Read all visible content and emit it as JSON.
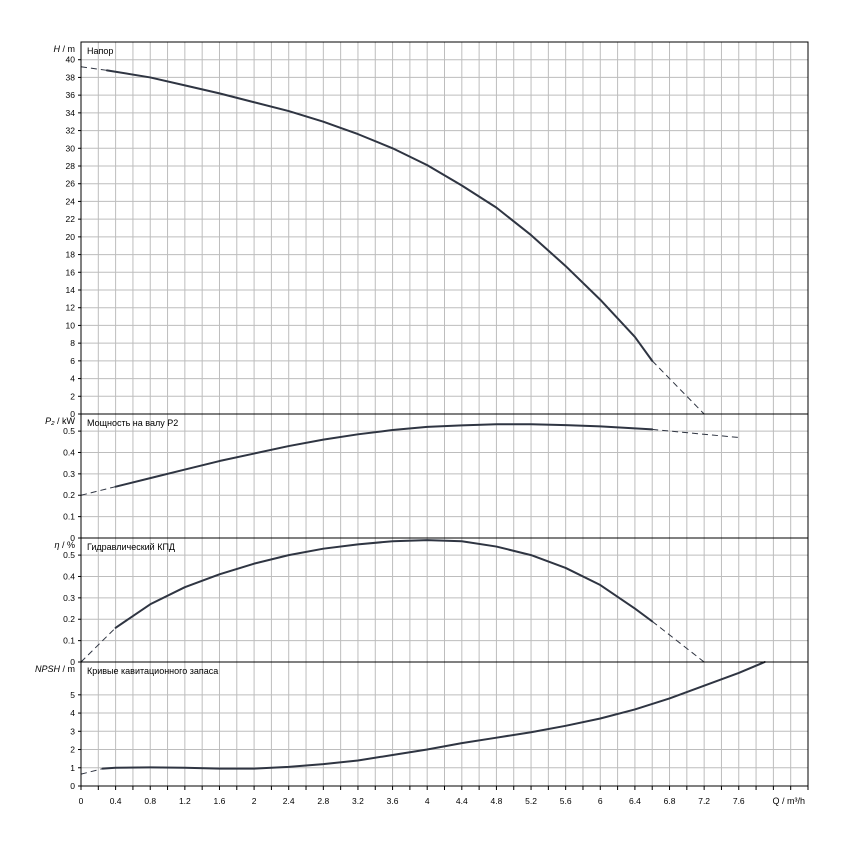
{
  "chart_data": [
    {
      "type": "line",
      "title": "Напор",
      "ylabel_symbol": "H",
      "ylabel_unit": "m",
      "ylim": [
        0,
        42
      ],
      "yticks": [
        0,
        2,
        4,
        6,
        8,
        10,
        12,
        14,
        16,
        18,
        20,
        22,
        24,
        26,
        28,
        30,
        32,
        34,
        36,
        38,
        40
      ],
      "series": [
        {
          "x": [
            0.3,
            0.8,
            1.2,
            1.6,
            2.0,
            2.4,
            2.8,
            3.2,
            3.6,
            4.0,
            4.4,
            4.8,
            5.2,
            5.6,
            6.0,
            6.4,
            6.6
          ],
          "y": [
            38.8,
            38.0,
            37.1,
            36.2,
            35.2,
            34.2,
            33.0,
            31.6,
            30.0,
            28.1,
            25.8,
            23.3,
            20.2,
            16.7,
            12.9,
            8.7,
            6.0
          ]
        }
      ],
      "extrapolation": [
        {
          "x": [
            0.0,
            0.3
          ],
          "y": [
            39.2,
            38.8
          ]
        },
        {
          "x": [
            6.6,
            7.2
          ],
          "y": [
            6.0,
            0.0
          ]
        }
      ]
    },
    {
      "type": "line",
      "title": "Мощность на валу P2",
      "ylabel_symbol": "P₂",
      "ylabel_unit": "kW",
      "ylim": [
        0,
        0.58
      ],
      "yticks": [
        0,
        0.1,
        0.2,
        0.3,
        0.4,
        0.5
      ],
      "ytick_labels": [
        "0",
        "0.1",
        "0.2",
        "0.3",
        "0.4",
        "0.5"
      ],
      "series": [
        {
          "x": [
            0.4,
            0.8,
            1.2,
            1.6,
            2.0,
            2.4,
            2.8,
            3.2,
            3.6,
            4.0,
            4.4,
            4.8,
            5.2,
            5.6,
            6.0,
            6.4,
            6.6
          ],
          "y": [
            0.24,
            0.28,
            0.32,
            0.36,
            0.395,
            0.43,
            0.46,
            0.485,
            0.505,
            0.52,
            0.527,
            0.532,
            0.532,
            0.528,
            0.522,
            0.513,
            0.508
          ]
        }
      ],
      "extrapolation": [
        {
          "x": [
            0.0,
            0.4
          ],
          "y": [
            0.2,
            0.24
          ]
        },
        {
          "x": [
            6.6,
            7.6
          ],
          "y": [
            0.508,
            0.47
          ]
        }
      ]
    },
    {
      "type": "line",
      "title": "Гидравлический КПД",
      "ylabel_symbol": "η",
      "ylabel_unit": "%",
      "ylim": [
        0,
        0.58
      ],
      "yticks": [
        0,
        0.1,
        0.2,
        0.3,
        0.4,
        0.5
      ],
      "ytick_labels": [
        "0",
        "0.1",
        "0.2",
        "0.3",
        "0.4",
        "0.5"
      ],
      "series": [
        {
          "x": [
            0.4,
            0.8,
            1.2,
            1.6,
            2.0,
            2.4,
            2.8,
            3.2,
            3.6,
            4.0,
            4.4,
            4.8,
            5.2,
            5.6,
            6.0,
            6.4,
            6.6
          ],
          "y": [
            0.16,
            0.27,
            0.35,
            0.41,
            0.46,
            0.5,
            0.53,
            0.55,
            0.565,
            0.57,
            0.565,
            0.54,
            0.5,
            0.44,
            0.36,
            0.25,
            0.19
          ]
        }
      ],
      "extrapolation": [
        {
          "x": [
            0.0,
            0.4
          ],
          "y": [
            0.0,
            0.16
          ]
        },
        {
          "x": [
            6.6,
            7.2
          ],
          "y": [
            0.19,
            0.0
          ]
        }
      ]
    },
    {
      "type": "line",
      "title": "Кривые кавитационного запаса",
      "ylabel_symbol": "NPSH",
      "ylabel_unit": "m",
      "ylim": [
        0,
        6.8
      ],
      "yticks": [
        0,
        1,
        2,
        3,
        4,
        5
      ],
      "series": [
        {
          "x": [
            0.25,
            0.4,
            0.8,
            1.2,
            1.6,
            2.0,
            2.4,
            2.8,
            3.2,
            3.6,
            4.0,
            4.4,
            4.8,
            5.2,
            5.6,
            6.0,
            6.4,
            6.8,
            7.2,
            7.6,
            7.9
          ],
          "y": [
            0.95,
            1.0,
            1.02,
            1.0,
            0.95,
            0.95,
            1.05,
            1.2,
            1.4,
            1.7,
            2.0,
            2.35,
            2.65,
            2.95,
            3.3,
            3.7,
            4.2,
            4.8,
            5.5,
            6.2,
            6.8
          ]
        }
      ],
      "extrapolation": [
        {
          "x": [
            0.0,
            0.25
          ],
          "y": [
            0.65,
            0.95
          ]
        }
      ]
    }
  ],
  "x_axis": {
    "label": "Q / m³/h",
    "xlim": [
      0,
      8.4
    ],
    "ticks": [
      0,
      0.4,
      0.8,
      1.2,
      1.6,
      2,
      2.4,
      2.8,
      3.2,
      3.6,
      4,
      4.4,
      4.8,
      5.2,
      5.6,
      6,
      6.4,
      6.8,
      7.2,
      7.6
    ],
    "minor_step": 0.2
  },
  "colors": {
    "curve": "#2f3542",
    "grid": "#bdbdbd",
    "frame": "#000000",
    "background": "#ffffff"
  }
}
